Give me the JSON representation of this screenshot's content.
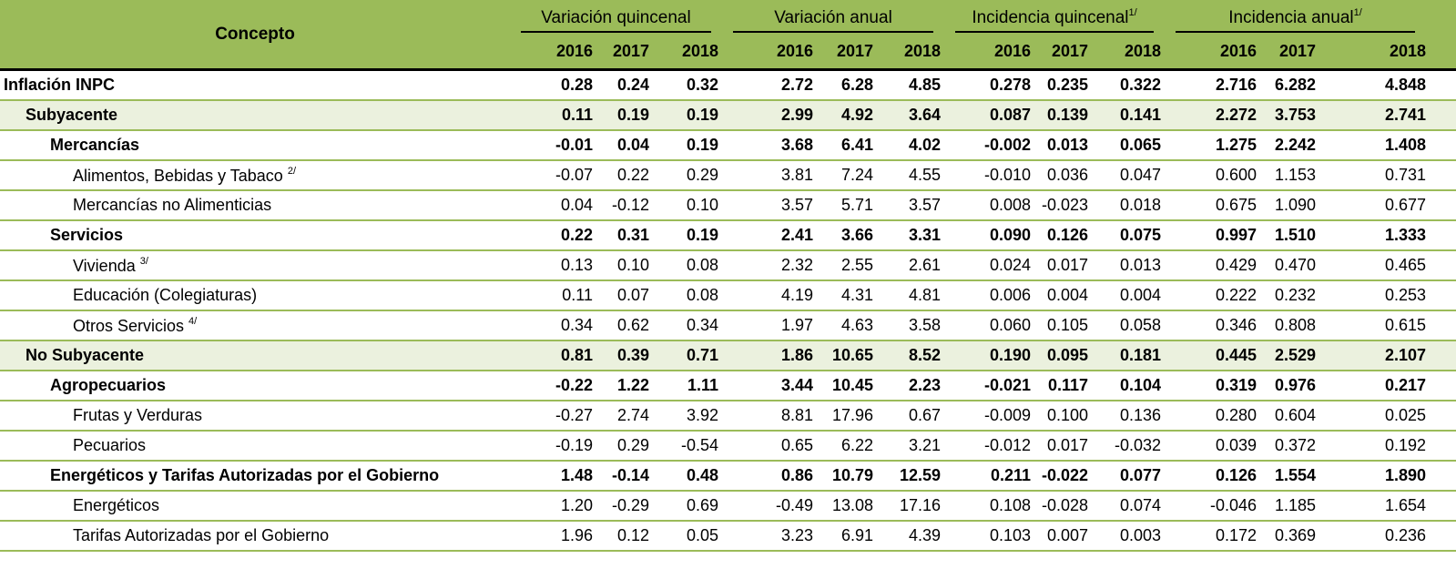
{
  "header": {
    "concept": "Concepto",
    "groups": [
      {
        "label": "Variación quincenal",
        "note": ""
      },
      {
        "label": "Variación  anual",
        "note": ""
      },
      {
        "label": "Incidencia quincenal",
        "note": "1/"
      },
      {
        "label": "Incidencia anual",
        "note": "1/"
      }
    ],
    "years": [
      "2016",
      "2017",
      "2018"
    ]
  },
  "colors": {
    "header": "#9bbb59",
    "highlight": "#ebf1de"
  },
  "rows": [
    {
      "concept": "Inflación INPC",
      "note": "",
      "level": 0,
      "bold": true,
      "hl": false,
      "values": [
        "0.28",
        "0.24",
        "0.32",
        "2.72",
        "6.28",
        "4.85",
        "0.278",
        "0.235",
        "0.322",
        "2.716",
        "6.282",
        "4.848"
      ]
    },
    {
      "concept": "Subyacente",
      "note": "",
      "level": 1,
      "bold": true,
      "hl": true,
      "values": [
        "0.11",
        "0.19",
        "0.19",
        "2.99",
        "4.92",
        "3.64",
        "0.087",
        "0.139",
        "0.141",
        "2.272",
        "3.753",
        "2.741"
      ]
    },
    {
      "concept": "Mercancías",
      "note": "",
      "level": 2,
      "bold": true,
      "hl": false,
      "values": [
        "-0.01",
        "0.04",
        "0.19",
        "3.68",
        "6.41",
        "4.02",
        "-0.002",
        "0.013",
        "0.065",
        "1.275",
        "2.242",
        "1.408"
      ]
    },
    {
      "concept": "Alimentos, Bebidas y Tabaco",
      "note": "2/",
      "level": 3,
      "bold": false,
      "hl": false,
      "values": [
        "-0.07",
        "0.22",
        "0.29",
        "3.81",
        "7.24",
        "4.55",
        "-0.010",
        "0.036",
        "0.047",
        "0.600",
        "1.153",
        "0.731"
      ]
    },
    {
      "concept": "Mercancías no Alimenticias",
      "note": "",
      "level": 3,
      "bold": false,
      "hl": false,
      "values": [
        "0.04",
        "-0.12",
        "0.10",
        "3.57",
        "5.71",
        "3.57",
        "0.008",
        "-0.023",
        "0.018",
        "0.675",
        "1.090",
        "0.677"
      ]
    },
    {
      "concept": "Servicios",
      "note": "",
      "level": 2,
      "bold": true,
      "hl": false,
      "values": [
        "0.22",
        "0.31",
        "0.19",
        "2.41",
        "3.66",
        "3.31",
        "0.090",
        "0.126",
        "0.075",
        "0.997",
        "1.510",
        "1.333"
      ]
    },
    {
      "concept": "Vivienda",
      "note": "3/",
      "level": 3,
      "bold": false,
      "hl": false,
      "values": [
        "0.13",
        "0.10",
        "0.08",
        "2.32",
        "2.55",
        "2.61",
        "0.024",
        "0.017",
        "0.013",
        "0.429",
        "0.470",
        "0.465"
      ]
    },
    {
      "concept": "Educación (Colegiaturas)",
      "note": "",
      "level": 3,
      "bold": false,
      "hl": false,
      "values": [
        "0.11",
        "0.07",
        "0.08",
        "4.19",
        "4.31",
        "4.81",
        "0.006",
        "0.004",
        "0.004",
        "0.222",
        "0.232",
        "0.253"
      ]
    },
    {
      "concept": "Otros Servicios",
      "note": "4/",
      "level": 3,
      "bold": false,
      "hl": false,
      "values": [
        "0.34",
        "0.62",
        "0.34",
        "1.97",
        "4.63",
        "3.58",
        "0.060",
        "0.105",
        "0.058",
        "0.346",
        "0.808",
        "0.615"
      ]
    },
    {
      "concept": "No Subyacente",
      "note": "",
      "level": 1,
      "bold": true,
      "hl": true,
      "values": [
        "0.81",
        "0.39",
        "0.71",
        "1.86",
        "10.65",
        "8.52",
        "0.190",
        "0.095",
        "0.181",
        "0.445",
        "2.529",
        "2.107"
      ]
    },
    {
      "concept": "Agropecuarios",
      "note": "",
      "level": 2,
      "bold": true,
      "hl": false,
      "values": [
        "-0.22",
        "1.22",
        "1.11",
        "3.44",
        "10.45",
        "2.23",
        "-0.021",
        "0.117",
        "0.104",
        "0.319",
        "0.976",
        "0.217"
      ]
    },
    {
      "concept": "Frutas y Verduras",
      "note": "",
      "level": 3,
      "bold": false,
      "hl": false,
      "values": [
        "-0.27",
        "2.74",
        "3.92",
        "8.81",
        "17.96",
        "0.67",
        "-0.009",
        "0.100",
        "0.136",
        "0.280",
        "0.604",
        "0.025"
      ]
    },
    {
      "concept": "Pecuarios",
      "note": "",
      "level": 3,
      "bold": false,
      "hl": false,
      "values": [
        "-0.19",
        "0.29",
        "-0.54",
        "0.65",
        "6.22",
        "3.21",
        "-0.012",
        "0.017",
        "-0.032",
        "0.039",
        "0.372",
        "0.192"
      ]
    },
    {
      "concept": "Energéticos y Tarifas Autorizadas por el Gobierno",
      "note": "",
      "level": 2,
      "bold": true,
      "hl": false,
      "values": [
        "1.48",
        "-0.14",
        "0.48",
        "0.86",
        "10.79",
        "12.59",
        "0.211",
        "-0.022",
        "0.077",
        "0.126",
        "1.554",
        "1.890"
      ]
    },
    {
      "concept": "Energéticos",
      "note": "",
      "level": 3,
      "bold": false,
      "hl": false,
      "values": [
        "1.20",
        "-0.29",
        "0.69",
        "-0.49",
        "13.08",
        "17.16",
        "0.108",
        "-0.028",
        "0.074",
        "-0.046",
        "1.185",
        "1.654"
      ]
    },
    {
      "concept": "Tarifas Autorizadas por el Gobierno",
      "note": "",
      "level": 3,
      "bold": false,
      "hl": false,
      "values": [
        "1.96",
        "0.12",
        "0.05",
        "3.23",
        "6.91",
        "4.39",
        "0.103",
        "0.007",
        "0.003",
        "0.172",
        "0.369",
        "0.236"
      ]
    }
  ]
}
